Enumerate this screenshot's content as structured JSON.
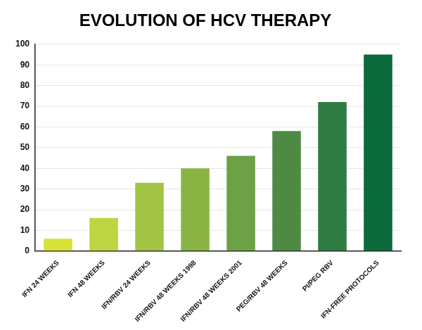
{
  "chart_data": {
    "type": "bar",
    "title": "EVOLUTION OF HCV THERAPY",
    "categories": [
      "IFN 24 WEEKS",
      "IFN 48 WEEKS",
      "IFN/RBV 24 WEEKS",
      "IFN/RBV 48 WEEKS 1998",
      "IFN/RBV 48 WEEKS 2001",
      "PEG/RBV 48 WEEKS",
      "PI/PEG RBV",
      "IFN-FREE PROTOCOLS"
    ],
    "values": [
      6,
      16,
      33,
      40,
      46,
      58,
      72,
      95
    ],
    "colors": [
      "#d6e23a",
      "#bdd542",
      "#a3c445",
      "#8ab545",
      "#6da146",
      "#4e8a44",
      "#2f7b44",
      "#0b6a3b"
    ],
    "ylim": [
      0,
      100
    ],
    "yticks": [
      0,
      10,
      20,
      30,
      40,
      50,
      60,
      70,
      80,
      90,
      100
    ],
    "grid": true
  }
}
